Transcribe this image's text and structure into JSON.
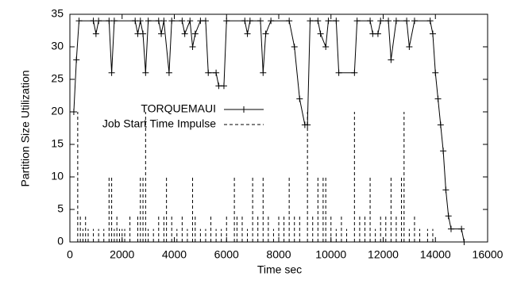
{
  "chart_data": {
    "type": "line",
    "xlabel": "Time sec",
    "ylabel": "Partition Size Utilization",
    "xlim": [
      0,
      16000
    ],
    "xticks": [
      0,
      2000,
      4000,
      6000,
      8000,
      10000,
      12000,
      14000,
      16000
    ],
    "ylim": [
      0,
      35
    ],
    "yticks": [
      0,
      5,
      10,
      15,
      20,
      25,
      30,
      35
    ],
    "grid": false,
    "legend": "center",
    "series": [
      {
        "name": "TORQUEMAUI",
        "color": "#000000",
        "style": "line-cross",
        "x": [
          150,
          250,
          350,
          900,
          1000,
          1100,
          1500,
          1600,
          1700,
          2500,
          2600,
          2700,
          2800,
          2900,
          3000,
          3400,
          3500,
          3600,
          3800,
          3900,
          4300,
          4400,
          4600,
          4700,
          4800,
          5000,
          5200,
          5300,
          5600,
          5700,
          5900,
          6000,
          6700,
          6800,
          6900,
          7300,
          7400,
          7500,
          7700,
          8400,
          8600,
          8800,
          9000,
          9100,
          9200,
          9500,
          9600,
          9800,
          9900,
          10200,
          10300,
          10900,
          11000,
          11500,
          11600,
          11800,
          11900,
          12200,
          12300,
          12500,
          12900,
          13000,
          13200,
          13800,
          13900,
          14000,
          14100,
          14200,
          14300,
          14400,
          14500,
          14600,
          15000,
          15100
        ],
        "values": [
          20,
          28,
          34,
          34,
          32,
          34,
          34,
          26,
          34,
          34,
          32,
          34,
          32,
          26,
          34,
          34,
          32,
          34,
          26,
          34,
          34,
          32,
          34,
          30,
          32,
          34,
          34,
          26,
          26,
          24,
          24,
          34,
          34,
          32,
          34,
          34,
          26,
          32,
          34,
          34,
          30,
          22,
          18,
          18,
          34,
          34,
          32,
          30,
          34,
          34,
          26,
          26,
          34,
          34,
          32,
          32,
          34,
          34,
          28,
          34,
          34,
          30,
          34,
          34,
          32,
          26,
          22,
          18,
          14,
          8,
          4,
          2,
          2,
          0
        ]
      },
      {
        "name": "Job Start Time Impulse",
        "color": "#000000",
        "style": "impulse",
        "x": [
          300,
          400,
          500,
          600,
          700,
          900,
          1100,
          1300,
          1500,
          1600,
          1700,
          1800,
          1900,
          2000,
          2100,
          2300,
          2600,
          2700,
          2800,
          2900,
          3000,
          3200,
          3400,
          3600,
          3700,
          3900,
          4100,
          4300,
          4500,
          4700,
          4800,
          5000,
          5200,
          5400,
          5600,
          5800,
          6000,
          6300,
          6400,
          6600,
          6800,
          7000,
          7200,
          7400,
          7600,
          7800,
          8000,
          8200,
          8400,
          8600,
          8800,
          9100,
          9300,
          9500,
          9700,
          9800,
          10000,
          10200,
          10400,
          10600,
          10900,
          11100,
          11300,
          11500,
          11700,
          11900,
          12100,
          12300,
          12500,
          12700,
          12800,
          13000,
          13200,
          13400,
          13700,
          13900
        ],
        "values": [
          20,
          4,
          2,
          4,
          2,
          2,
          2,
          2,
          10,
          10,
          2,
          4,
          2,
          2,
          2,
          4,
          4,
          10,
          10,
          20,
          2,
          2,
          4,
          4,
          10,
          4,
          2,
          4,
          2,
          10,
          4,
          2,
          2,
          4,
          2,
          2,
          4,
          10,
          4,
          4,
          2,
          10,
          4,
          10,
          4,
          2,
          4,
          4,
          10,
          4,
          4,
          20,
          4,
          10,
          10,
          10,
          4,
          2,
          4,
          2,
          20,
          4,
          4,
          10,
          2,
          4,
          4,
          10,
          4,
          10,
          20,
          2,
          4,
          2,
          2,
          2
        ]
      }
    ]
  }
}
